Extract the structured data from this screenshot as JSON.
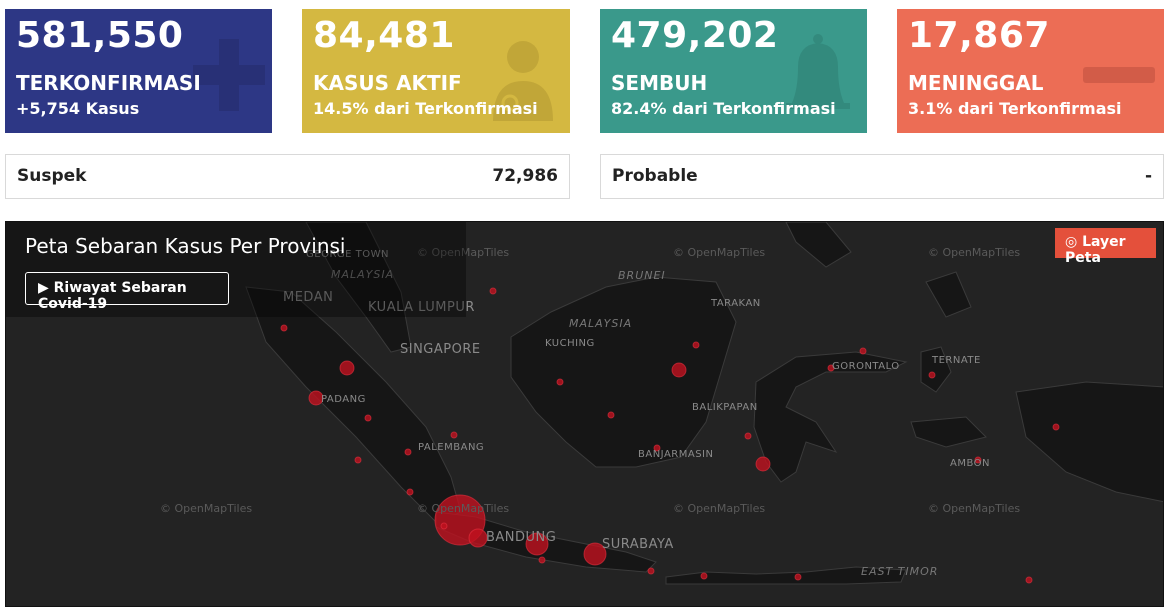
{
  "stats": [
    {
      "value": "581,550",
      "label": "TERKONFIRMASI",
      "sub": "+5,754 Kasus",
      "color": "#2d3785",
      "icon": "plus-icon"
    },
    {
      "value": "84,481",
      "label": "KASUS AKTIF",
      "sub": "14.5% dari Terkonfirmasi",
      "color": "#d4b841",
      "icon": "doctor-icon"
    },
    {
      "value": "479,202",
      "label": "SEMBUH",
      "sub": "82.4% dari Terkonfirmasi",
      "color": "#3a998b",
      "icon": "bell-icon"
    },
    {
      "value": "17,867",
      "label": "MENINGGAL",
      "sub": "3.1% dari Terkonfirmasi",
      "color": "#ec6d55",
      "icon": "minus-icon"
    }
  ],
  "suspek": {
    "label": "Suspek",
    "value": "72,986"
  },
  "probable": {
    "label": "Probable",
    "value": "-"
  },
  "map": {
    "title": "Peta Sebaran Kasus Per Provinsi",
    "history_button": "Riwayat Sebaran Covid-19",
    "layer_button": "Layer Peta",
    "cities": [
      "MEDAN",
      "KUALA LUMPUR",
      "SINGAPORE",
      "PADANG",
      "PALEMBANG",
      "BANDUNG",
      "SURABAYA",
      "KUCHING",
      "TARAKAN",
      "BALIKPAPAN",
      "BANJARMASIN",
      "GORONTALO",
      "TERNATE",
      "AMBON",
      "GEORGE TOWN"
    ],
    "countries": [
      "MALAYSIA",
      "BRUNEI",
      "EAST TIMOR"
    ],
    "attribution": "© OpenMapTiles"
  }
}
